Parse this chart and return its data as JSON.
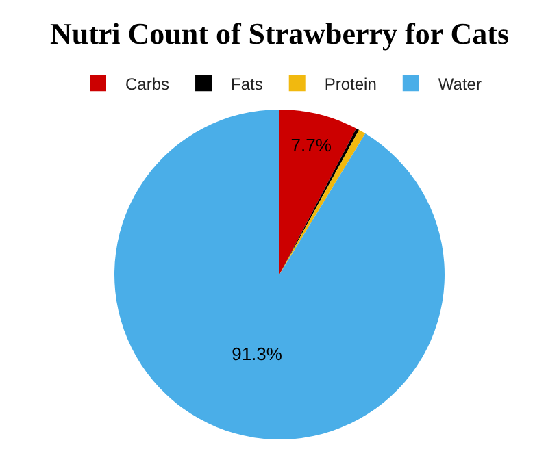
{
  "chart_data": {
    "type": "pie",
    "title": "Nutri Count of Strawberry for Cats",
    "categories": [
      "Carbs",
      "Fats",
      "Protein",
      "Water"
    ],
    "values": [
      7.7,
      0.3,
      0.7,
      91.3
    ],
    "colors": [
      "#cc0000",
      "#000000",
      "#f1b90f",
      "#4aaee8"
    ],
    "value_labels": [
      "7.7%",
      null,
      null,
      "91.3%"
    ],
    "legend": "top"
  }
}
